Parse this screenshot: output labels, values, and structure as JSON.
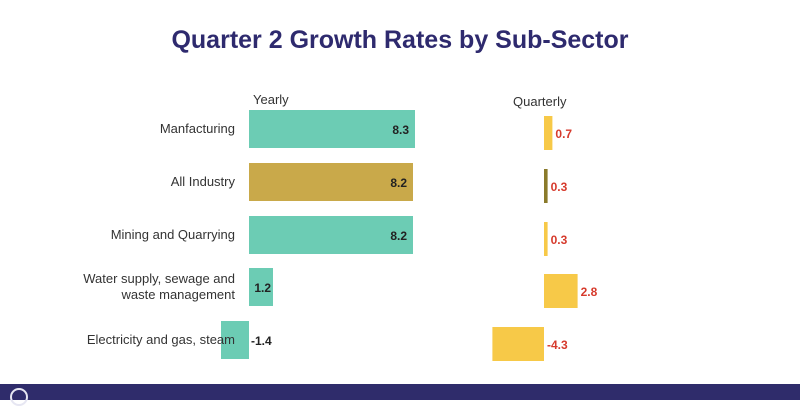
{
  "title": "Quarter 2 Growth Rates by Sub-Sector",
  "chart_data": [
    {
      "type": "bar",
      "orientation": "horizontal",
      "title": "Yearly",
      "categories": [
        "Manfacturing",
        "All Industry",
        "Mining and Quarrying",
        "Water supply, sewage and waste management",
        "Electricity and gas, steam"
      ],
      "category_lines": [
        [
          "Manfacturing"
        ],
        [
          "All Industry"
        ],
        [
          "Mining and Quarrying"
        ],
        [
          "Water supply, sewage and",
          "waste management"
        ],
        [
          "Electricity and gas, steam"
        ]
      ],
      "values": [
        8.3,
        8.2,
        8.2,
        1.2,
        -1.4
      ],
      "labels": [
        "8.3",
        "8.2",
        "8.2",
        "1.2",
        "-1.4"
      ],
      "colors": [
        "#6cccb4",
        "#c9a94a",
        "#6cccb4",
        "#6cccb4",
        "#6cccb4"
      ],
      "label_color": "#222222"
    },
    {
      "type": "bar",
      "orientation": "horizontal",
      "title": "Quarterly",
      "categories": [
        "Manfacturing",
        "All Industry",
        "Mining and Quarrying",
        "Water supply, sewage and waste management",
        "Electricity and gas, steam"
      ],
      "values": [
        0.7,
        0.3,
        0.3,
        2.8,
        -4.3
      ],
      "labels": [
        "0.7",
        "0.3",
        "0.3",
        "2.8",
        "-4.3"
      ],
      "colors": [
        "#f7c948",
        "#8a7a2a",
        "#f7c948",
        "#f7c948",
        "#f7c948"
      ],
      "label_color": "#d63a2c"
    }
  ]
}
